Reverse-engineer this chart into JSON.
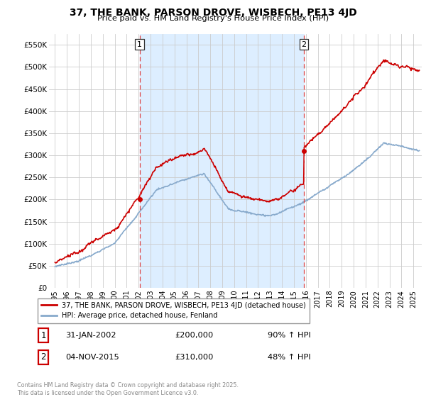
{
  "title": "37, THE BANK, PARSON DROVE, WISBECH, PE13 4JD",
  "subtitle": "Price paid vs. HM Land Registry's House Price Index (HPI)",
  "footnote": "Contains HM Land Registry data © Crown copyright and database right 2025.\nThis data is licensed under the Open Government Licence v3.0.",
  "legend_label_red": "37, THE BANK, PARSON DROVE, WISBECH, PE13 4JD (detached house)",
  "legend_label_blue": "HPI: Average price, detached house, Fenland",
  "sale1_label": "1",
  "sale1_date": "31-JAN-2002",
  "sale1_price": "£200,000",
  "sale1_pct": "90% ↑ HPI",
  "sale2_label": "2",
  "sale2_date": "04-NOV-2015",
  "sale2_price": "£310,000",
  "sale2_pct": "48% ↑ HPI",
  "sale1_x": 2002.08,
  "sale1_y": 200000,
  "sale2_x": 2015.84,
  "sale2_y": 310000,
  "ylim_min": 0,
  "ylim_max": 575000,
  "xlim_min": 1994.5,
  "xlim_max": 2025.7,
  "red_color": "#cc0000",
  "blue_color": "#88aacc",
  "shade_color": "#ddeeff",
  "vline_color": "#dd4444",
  "grid_color": "#cccccc",
  "background_color": "#ffffff",
  "yticks": [
    0,
    50000,
    100000,
    150000,
    200000,
    250000,
    300000,
    350000,
    400000,
    450000,
    500000,
    550000
  ],
  "ytick_labels": [
    "£0",
    "£50K",
    "£100K",
    "£150K",
    "£200K",
    "£250K",
    "£300K",
    "£350K",
    "£400K",
    "£450K",
    "£500K",
    "£550K"
  ],
  "xticks": [
    1995,
    1996,
    1997,
    1998,
    1999,
    2000,
    2001,
    2002,
    2003,
    2004,
    2005,
    2006,
    2007,
    2008,
    2009,
    2010,
    2011,
    2012,
    2013,
    2014,
    2015,
    2016,
    2017,
    2018,
    2019,
    2020,
    2021,
    2022,
    2023,
    2024,
    2025
  ]
}
